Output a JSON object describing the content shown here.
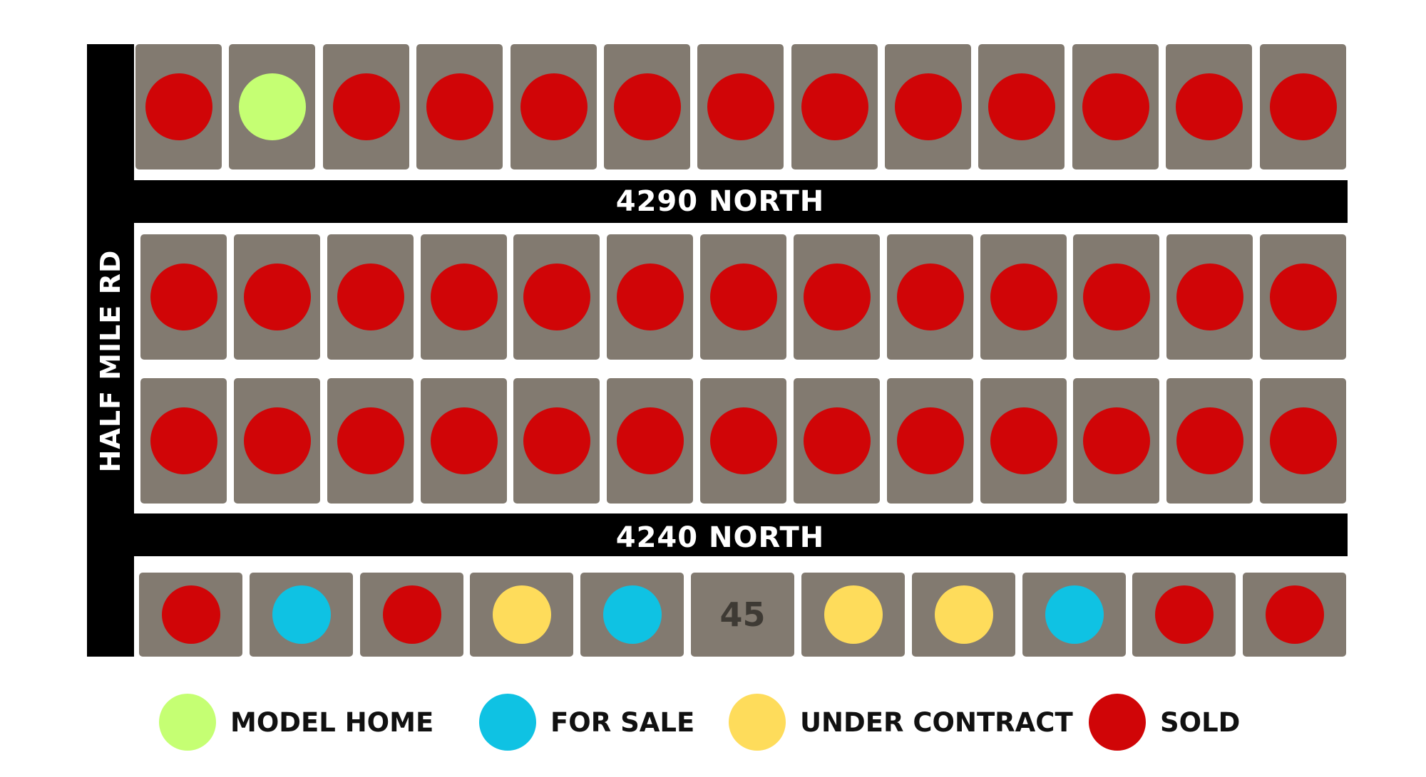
{
  "roads": {
    "left": "HALF MILE RD",
    "top": "4290 NORTH",
    "bottom": "4240 NORTH"
  },
  "status_colors": {
    "model": "#c5ff73",
    "forsale": "#0fc2e3",
    "contract": "#fedc5b",
    "sold": "#d00507"
  },
  "lots": {
    "row1": [
      "sold",
      "model",
      "sold",
      "sold",
      "sold",
      "sold",
      "sold",
      "sold",
      "sold",
      "sold",
      "sold",
      "sold",
      "sold"
    ],
    "row2": [
      "sold",
      "sold",
      "sold",
      "sold",
      "sold",
      "sold",
      "sold",
      "sold",
      "sold",
      "sold",
      "sold",
      "sold",
      "sold"
    ],
    "row3": [
      "sold",
      "sold",
      "sold",
      "sold",
      "sold",
      "sold",
      "sold",
      "sold",
      "sold",
      "sold",
      "sold",
      "sold",
      "sold"
    ],
    "row4": [
      "sold",
      "forsale",
      "sold",
      "contract",
      "forsale",
      null,
      "contract",
      "contract",
      "forsale",
      "sold",
      "sold"
    ],
    "row4_unmarked_lot_number": "45"
  },
  "legend": [
    {
      "status": "model",
      "label": "MODEL HOME"
    },
    {
      "status": "forsale",
      "label": "FOR SALE"
    },
    {
      "status": "contract",
      "label": "UNDER CONTRACT"
    },
    {
      "status": "sold",
      "label": "SOLD"
    }
  ]
}
